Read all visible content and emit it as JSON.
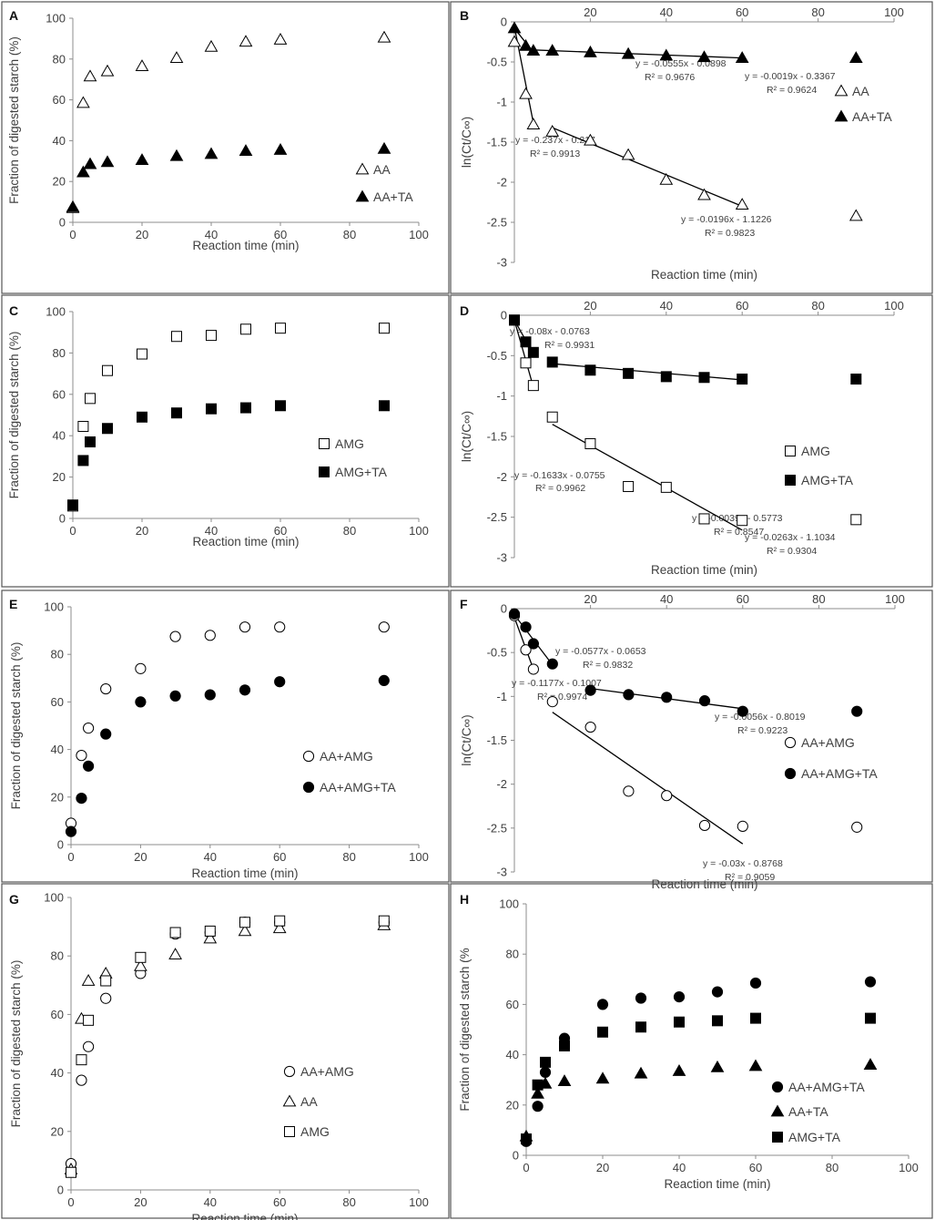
{
  "figure": {
    "axis_color": "#8c8c8c",
    "frame_color": "#555555",
    "marker_color": "#000000"
  },
  "chart_data": [
    {
      "id": "A",
      "panel_label": "A",
      "type": "scatter",
      "xlabel": "Reaction time (min)",
      "ylabel": "Fraction of digested starch (%)",
      "xlim": [
        0,
        100
      ],
      "ylim": [
        0,
        100
      ],
      "xticks": [
        "0",
        "20",
        "40",
        "60",
        "80",
        "100"
      ],
      "yticks": [
        "0",
        "20",
        "40",
        "60",
        "80",
        "100"
      ],
      "legend_position": "right-lower",
      "series": [
        {
          "name": "AA",
          "marker": "triangle-open",
          "x": [
            0,
            3,
            5,
            10,
            20,
            30,
            40,
            50,
            60,
            90
          ],
          "y": [
            7,
            58.5,
            71.5,
            74,
            76.5,
            80.5,
            86,
            88.5,
            89.5,
            90.5
          ]
        },
        {
          "name": "AA+TA",
          "marker": "triangle-filled",
          "x": [
            0,
            3,
            5,
            10,
            20,
            30,
            40,
            50,
            60,
            90
          ],
          "y": [
            7.5,
            24.5,
            28.5,
            29.5,
            30.5,
            32.5,
            33.5,
            35,
            35.5,
            36
          ]
        }
      ]
    },
    {
      "id": "B",
      "panel_label": "B",
      "type": "scatter",
      "xlabel": "Reaction time (min)",
      "ylabel": "ln(Ct/C∞)",
      "xlim": [
        0,
        100
      ],
      "ylim": [
        -3,
        0
      ],
      "xticks": [
        "20",
        "40",
        "60",
        "80",
        "100"
      ],
      "yticks": [
        "0",
        "-0.5",
        "-1",
        "-1.5",
        "-2",
        "-2.5",
        "-3"
      ],
      "legend_position": "right-upper",
      "series": [
        {
          "name": "AA",
          "marker": "triangle-open",
          "x": [
            0,
            3,
            5,
            10,
            20,
            30,
            40,
            50,
            60,
            90
          ],
          "y": [
            -0.25,
            -0.9,
            -1.28,
            -1.37,
            -1.48,
            -1.66,
            -1.97,
            -2.16,
            -2.28,
            -2.42
          ]
        },
        {
          "name": "AA+TA",
          "marker": "triangle-filled",
          "x": [
            0,
            3,
            5,
            10,
            20,
            30,
            40,
            50,
            60,
            90
          ],
          "y": [
            -0.08,
            -0.3,
            -0.36,
            -0.36,
            -0.38,
            -0.4,
            -0.42,
            -0.44,
            -0.45,
            -0.45
          ]
        }
      ],
      "fits": [
        {
          "x0": 0,
          "x1": 5,
          "y0": -0.08,
          "y1": -0.38,
          "equation": "y = -0.0555x - 0.0898",
          "r2": "R² = 0.9676"
        },
        {
          "x0": 5,
          "x1": 60,
          "y0": -0.35,
          "y1": -0.45,
          "equation": "y = -0.0019x - 0.3367",
          "r2": "R² = 0.9624"
        },
        {
          "x0": 0,
          "x1": 5,
          "y0": -0.06,
          "y1": -1.26,
          "equation": "y = -0.237x - 0.217",
          "r2": "R² = 0.9913"
        },
        {
          "x0": 10,
          "x1": 60,
          "y0": -1.32,
          "y1": -2.3,
          "equation": "y = -0.0196x - 1.1226",
          "r2": "R² = 0.9823"
        }
      ]
    },
    {
      "id": "C",
      "panel_label": "C",
      "type": "scatter",
      "xlabel": "Reaction time (min)",
      "ylabel": "Fraction of digested starch (%)",
      "xlim": [
        0,
        100
      ],
      "ylim": [
        0,
        100
      ],
      "xticks": [
        "0",
        "20",
        "40",
        "60",
        "80",
        "100"
      ],
      "yticks": [
        "0",
        "20",
        "40",
        "60",
        "80",
        "100"
      ],
      "legend_position": "right-middle",
      "series": [
        {
          "name": "AMG",
          "marker": "square-open",
          "x": [
            0,
            3,
            5,
            10,
            20,
            30,
            40,
            50,
            60,
            90
          ],
          "y": [
            6,
            44.5,
            58,
            71.5,
            79.5,
            88,
            88.5,
            91.5,
            92,
            92
          ]
        },
        {
          "name": "AMG+TA",
          "marker": "square-filled",
          "x": [
            0,
            3,
            5,
            10,
            20,
            30,
            40,
            50,
            60,
            90
          ],
          "y": [
            6.5,
            28,
            37,
            43.5,
            49,
            51,
            53,
            53.5,
            54.5,
            54.5
          ]
        }
      ]
    },
    {
      "id": "D",
      "panel_label": "D",
      "type": "scatter",
      "xlabel": "Reaction time (min)",
      "ylabel": "ln(Ct/C∞)",
      "xlim": [
        0,
        100
      ],
      "ylim": [
        -3,
        0
      ],
      "xticks": [
        "20",
        "40",
        "60",
        "80",
        "100"
      ],
      "yticks": [
        "0",
        "-0.5",
        "-1",
        "-1.5",
        "-2",
        "-2.5",
        "-3"
      ],
      "legend_position": "right-lower",
      "series": [
        {
          "name": "AMG",
          "marker": "square-open",
          "x": [
            0,
            3,
            5,
            10,
            20,
            30,
            40,
            50,
            60,
            90
          ],
          "y": [
            -0.06,
            -0.59,
            -0.87,
            -1.26,
            -1.59,
            -2.12,
            -2.13,
            -2.52,
            -2.54,
            -2.53
          ]
        },
        {
          "name": "AMG+TA",
          "marker": "square-filled",
          "x": [
            0,
            3,
            5,
            10,
            20,
            30,
            40,
            50,
            60,
            90
          ],
          "y": [
            -0.06,
            -0.33,
            -0.46,
            -0.58,
            -0.68,
            -0.72,
            -0.76,
            -0.77,
            -0.79,
            -0.79
          ]
        }
      ],
      "fits": [
        {
          "x0": 0,
          "x1": 5,
          "y0": -0.06,
          "y1": -0.48,
          "equation": "y = -0.08x - 0.0763",
          "r2": "R² = 0.9931"
        },
        {
          "x0": 10,
          "x1": 60,
          "y0": -0.6,
          "y1": -0.8,
          "equation": "y = -0.0039x - 0.5773",
          "r2": "R² = 0.8547"
        },
        {
          "x0": 0,
          "x1": 5,
          "y0": -0.06,
          "y1": -0.89,
          "equation": "y = -0.1633x - 0.0755",
          "r2": "R² = 0.9962"
        },
        {
          "x0": 10,
          "x1": 60,
          "y0": -1.35,
          "y1": -2.66,
          "equation": "y = -0.0263x - 1.1034",
          "r2": "R² = 0.9304"
        }
      ]
    },
    {
      "id": "E",
      "panel_label": "E",
      "type": "scatter",
      "xlabel": "Reaction time (min)",
      "ylabel": "Fraction of digested starch (%)",
      "xlim": [
        0,
        100
      ],
      "ylim": [
        0,
        100
      ],
      "xticks": [
        "0",
        "20",
        "40",
        "60",
        "80",
        "100"
      ],
      "yticks": [
        "0",
        "20",
        "40",
        "60",
        "80",
        "100"
      ],
      "legend_position": "right-middle",
      "series": [
        {
          "name": "AA+AMG",
          "marker": "circle-open",
          "x": [
            0,
            3,
            5,
            10,
            20,
            30,
            40,
            50,
            60,
            90
          ],
          "y": [
            9,
            37.5,
            49,
            65.5,
            74,
            87.5,
            88,
            91.5,
            91.5,
            91.5
          ]
        },
        {
          "name": "AA+AMG+TA",
          "marker": "circle-filled",
          "x": [
            0,
            3,
            5,
            10,
            20,
            30,
            40,
            50,
            60,
            90
          ],
          "y": [
            5.5,
            19.5,
            33,
            46.5,
            60,
            62.5,
            63,
            65,
            68.5,
            69
          ]
        }
      ]
    },
    {
      "id": "F",
      "panel_label": "F",
      "type": "scatter",
      "xlabel": "Reaction time (min)",
      "ylabel": "ln(Ct/C∞)",
      "xlim": [
        0,
        100
      ],
      "ylim": [
        -3,
        0
      ],
      "xticks": [
        "20",
        "40",
        "60",
        "80",
        "100"
      ],
      "yticks": [
        "0",
        "-0.5",
        "-1",
        "-1.5",
        "-2",
        "-2.5",
        "-3"
      ],
      "legend_position": "right-middle",
      "series": [
        {
          "name": "AA+AMG",
          "marker": "circle-open",
          "x": [
            0,
            3,
            5,
            10,
            20,
            30,
            40,
            50,
            60,
            90
          ],
          "y": [
            -0.08,
            -0.47,
            -0.69,
            -1.06,
            -1.35,
            -2.08,
            -2.13,
            -2.47,
            -2.48,
            -2.49
          ]
        },
        {
          "name": "AA+AMG+TA",
          "marker": "circle-filled",
          "x": [
            0,
            3,
            5,
            10,
            20,
            30,
            40,
            50,
            60,
            90
          ],
          "y": [
            -0.06,
            -0.21,
            -0.4,
            -0.63,
            -0.93,
            -0.98,
            -1.01,
            -1.05,
            -1.17,
            -1.17
          ]
        }
      ],
      "fits": [
        {
          "x0": 0,
          "x1": 10,
          "y0": -0.07,
          "y1": -0.64,
          "equation": "y = -0.0577x - 0.0653",
          "r2": "R² = 0.9832"
        },
        {
          "x0": 20,
          "x1": 60,
          "y0": -0.91,
          "y1": -1.14,
          "equation": "y = -0.0056x - 0.8019",
          "r2": "R² = 0.9223"
        },
        {
          "x0": 0,
          "x1": 5,
          "y0": -0.1,
          "y1": -0.69,
          "equation": "y = -0.1177x - 0.1007",
          "r2": "R² = 0.9974"
        },
        {
          "x0": 10,
          "x1": 60,
          "y0": -1.18,
          "y1": -2.68,
          "equation": "y = -0.03x - 0.8768",
          "r2": "R² = 0.9059"
        }
      ]
    },
    {
      "id": "G",
      "panel_label": "G",
      "type": "scatter",
      "xlabel": "Reaction time (min)",
      "ylabel": "Fraction of digested starch (%)",
      "xlim": [
        0,
        100
      ],
      "ylim": [
        0,
        100
      ],
      "xticks": [
        "0",
        "20",
        "40",
        "60",
        "80",
        "100"
      ],
      "yticks": [
        "0",
        "20",
        "40",
        "60",
        "80",
        "100"
      ],
      "legend_position": "right-lower",
      "series": [
        {
          "name": "AA+AMG",
          "marker": "circle-open",
          "x": [
            0,
            3,
            5,
            10,
            20,
            30,
            40,
            50,
            60,
            90
          ],
          "y": [
            9,
            37.5,
            49,
            65.5,
            74,
            87.5,
            88,
            91.5,
            91.5,
            91.5
          ]
        },
        {
          "name": "AA",
          "marker": "triangle-open",
          "x": [
            0,
            3,
            5,
            10,
            20,
            30,
            40,
            50,
            60,
            90
          ],
          "y": [
            7,
            58.5,
            71.5,
            74,
            76.5,
            80.5,
            86,
            88.5,
            89.5,
            90.5
          ]
        },
        {
          "name": "AMG",
          "marker": "square-open",
          "x": [
            0,
            3,
            5,
            10,
            20,
            30,
            40,
            50,
            60,
            90
          ],
          "y": [
            6,
            44.5,
            58,
            71.5,
            79.5,
            88,
            88.5,
            91.5,
            92,
            92
          ]
        }
      ]
    },
    {
      "id": "H",
      "panel_label": "H",
      "type": "scatter",
      "xlabel": "Reaction time (min)",
      "ylabel": "Fraction of digested starch (%",
      "xlim": [
        0,
        100
      ],
      "ylim": [
        0,
        100
      ],
      "xticks": [
        "0",
        "20",
        "40",
        "60",
        "80",
        "100"
      ],
      "yticks": [
        "0",
        "20",
        "40",
        "60",
        "80",
        "100"
      ],
      "legend_position": "right-lower",
      "series": [
        {
          "name": "AA+AMG+TA",
          "marker": "circle-filled",
          "x": [
            0,
            3,
            5,
            10,
            20,
            30,
            40,
            50,
            60,
            90
          ],
          "y": [
            5.5,
            19.5,
            33,
            46.5,
            60,
            62.5,
            63,
            65,
            68.5,
            69
          ]
        },
        {
          "name": "AA+TA",
          "marker": "triangle-filled",
          "x": [
            0,
            3,
            5,
            10,
            20,
            30,
            40,
            50,
            60,
            90
          ],
          "y": [
            7.5,
            24.5,
            28.5,
            29.5,
            30.5,
            32.5,
            33.5,
            35,
            35.5,
            36
          ]
        },
        {
          "name": "AMG+TA",
          "marker": "square-filled",
          "x": [
            0,
            3,
            5,
            10,
            20,
            30,
            40,
            50,
            60,
            90
          ],
          "y": [
            6.5,
            28,
            37,
            43.5,
            49,
            51,
            53,
            53.5,
            54.5,
            54.5
          ]
        }
      ]
    }
  ]
}
